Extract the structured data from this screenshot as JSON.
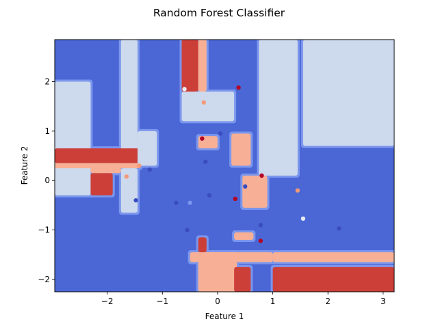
{
  "chart_data": {
    "type": "decision-boundary",
    "title": "Random Forest Classifier",
    "xlabel": "Feature 1",
    "ylabel": "Feature 2",
    "xlim": [
      -2.95,
      3.2
    ],
    "ylim": [
      -2.25,
      2.85
    ],
    "xticks": [
      -2,
      -1,
      0,
      1,
      2,
      3
    ],
    "yticks": [
      -2,
      -1,
      0,
      1,
      2
    ],
    "xtick_labels": [
      "−2",
      "−1",
      "0",
      "1",
      "2",
      "3"
    ],
    "ytick_labels": [
      "−2",
      "−1",
      "0",
      "1",
      "2"
    ],
    "grid": false,
    "legend": "none",
    "colors": {
      "level_0": "#4b67d6",
      "level_1": "#7b96ed",
      "level_2": "#cdd9ec",
      "level_3": "#f7b095",
      "level_4": "#cc3f39"
    },
    "regions": [
      {
        "x": [
          -1.75,
          -1.45
        ],
        "y": [
          0.25,
          2.85
        ],
        "level": 2
      },
      {
        "x": [
          -2.95,
          -2.3
        ],
        "y": [
          -0.3,
          2.0
        ],
        "level": 2
      },
      {
        "x": [
          -2.95,
          -1.4
        ],
        "y": [
          0.35,
          0.65
        ],
        "level": 4
      },
      {
        "x": [
          -2.95,
          -1.4
        ],
        "y": [
          0.25,
          0.35
        ],
        "level": 3
      },
      {
        "x": [
          -2.3,
          -1.75
        ],
        "y": [
          0.15,
          0.35
        ],
        "level": 3
      },
      {
        "x": [
          -2.3,
          -1.9
        ],
        "y": [
          -0.3,
          0.15
        ],
        "level": 4
      },
      {
        "x": [
          -1.75,
          -1.45
        ],
        "y": [
          -0.65,
          0.25
        ],
        "level": 2
      },
      {
        "x": [
          -1.45,
          -1.1
        ],
        "y": [
          0.3,
          1.0
        ],
        "level": 2
      },
      {
        "x": [
          -0.65,
          -0.35
        ],
        "y": [
          1.8,
          2.85
        ],
        "level": 4
      },
      {
        "x": [
          -0.35,
          -0.2
        ],
        "y": [
          1.8,
          2.85
        ],
        "level": 3
      },
      {
        "x": [
          -0.65,
          0.3
        ],
        "y": [
          1.2,
          1.8
        ],
        "level": 2
      },
      {
        "x": [
          0.75,
          1.45
        ],
        "y": [
          0.1,
          2.85
        ],
        "level": 2
      },
      {
        "x": [
          1.55,
          3.2
        ],
        "y": [
          0.7,
          2.85
        ],
        "level": 2
      },
      {
        "x": [
          0.25,
          0.6
        ],
        "y": [
          0.3,
          0.95
        ],
        "level": 3
      },
      {
        "x": [
          -0.35,
          0.0
        ],
        "y": [
          0.65,
          0.9
        ],
        "level": 3
      },
      {
        "x": [
          0.45,
          0.9
        ],
        "y": [
          -0.55,
          0.1
        ],
        "level": 3
      },
      {
        "x": [
          -0.5,
          1.0
        ],
        "y": [
          -1.65,
          -1.45
        ],
        "level": 3
      },
      {
        "x": [
          -0.35,
          0.35
        ],
        "y": [
          -2.25,
          -1.45
        ],
        "level": 3
      },
      {
        "x": [
          1.0,
          3.2
        ],
        "y": [
          -1.65,
          -1.45
        ],
        "level": 3
      },
      {
        "x": [
          1.0,
          3.2
        ],
        "y": [
          -2.25,
          -1.75
        ],
        "level": 4
      },
      {
        "x": [
          0.3,
          0.6
        ],
        "y": [
          -2.25,
          -1.75
        ],
        "level": 4
      },
      {
        "x": [
          -0.35,
          -0.2
        ],
        "y": [
          -1.45,
          -1.15
        ],
        "level": 4
      },
      {
        "x": [
          0.3,
          0.65
        ],
        "y": [
          -1.2,
          -1.05
        ],
        "level": 3
      }
    ],
    "points": [
      {
        "x": -0.6,
        "y": 1.85,
        "level": 2
      },
      {
        "x": -0.25,
        "y": 1.58,
        "level": 3
      },
      {
        "x": 0.38,
        "y": 1.88,
        "level": 4
      },
      {
        "x": -1.23,
        "y": 0.22,
        "level": 0
      },
      {
        "x": -1.65,
        "y": 0.08,
        "level": 3
      },
      {
        "x": -1.42,
        "y": 0.3,
        "level": 3
      },
      {
        "x": -1.48,
        "y": -0.4,
        "level": 0
      },
      {
        "x": -0.75,
        "y": -0.45,
        "level": 0
      },
      {
        "x": -0.55,
        "y": -1.0,
        "level": 0
      },
      {
        "x": -0.5,
        "y": -0.45,
        "level": 1
      },
      {
        "x": -0.28,
        "y": 0.85,
        "level": 4
      },
      {
        "x": -0.22,
        "y": 0.38,
        "level": 0
      },
      {
        "x": 0.05,
        "y": 0.95,
        "level": 0
      },
      {
        "x": 0.32,
        "y": -0.37,
        "level": 4
      },
      {
        "x": 0.5,
        "y": -0.12,
        "level": 0
      },
      {
        "x": 0.8,
        "y": 0.1,
        "level": 4
      },
      {
        "x": 0.78,
        "y": -0.9,
        "level": 0
      },
      {
        "x": 0.78,
        "y": -1.22,
        "level": 4
      },
      {
        "x": 1.45,
        "y": -0.2,
        "level": 3
      },
      {
        "x": 1.55,
        "y": -0.77,
        "level": 2
      },
      {
        "x": 2.2,
        "y": -0.97,
        "level": 0
      },
      {
        "x": -0.15,
        "y": -0.3,
        "level": 0
      }
    ]
  }
}
